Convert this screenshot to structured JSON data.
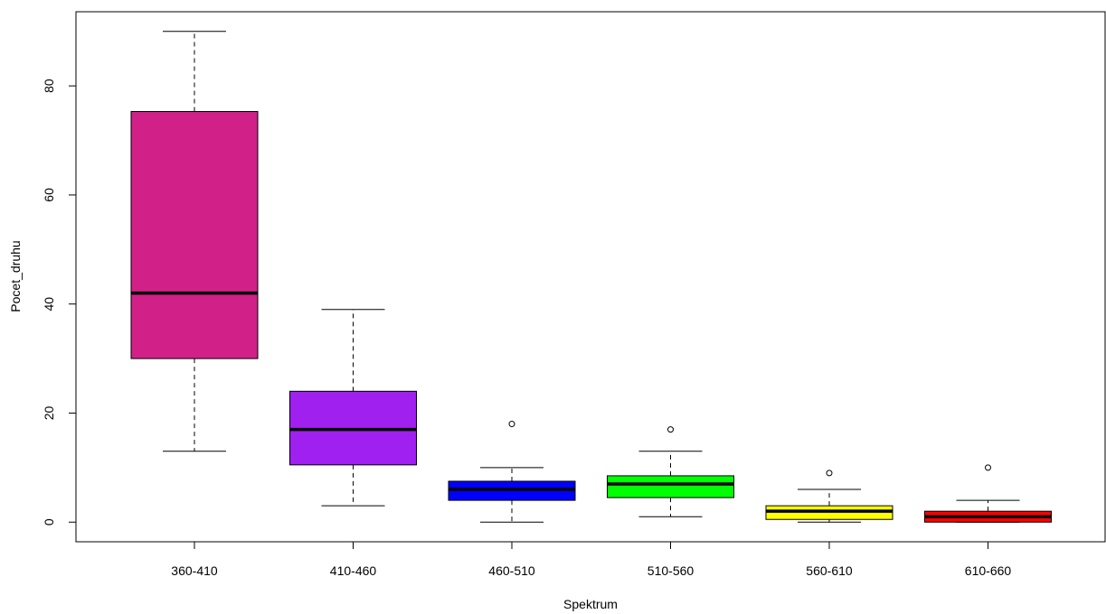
{
  "chart_data": {
    "type": "boxplot",
    "title": "",
    "xlabel": "Spektrum",
    "ylabel": "Pocet_druhu",
    "categories": [
      "360-410",
      "410-460",
      "460-510",
      "510-560",
      "560-610",
      "610-660"
    ],
    "colors": [
      "#d12189",
      "#a020f0",
      "#0000ff",
      "#00ff00",
      "#ffff00",
      "#ff0000"
    ],
    "boxes": [
      {
        "whisker_low": 13,
        "q1": 30,
        "median": 42,
        "q3": 75.3,
        "whisker_high": 90,
        "outliers": []
      },
      {
        "whisker_low": 3,
        "q1": 10.5,
        "median": 17,
        "q3": 24,
        "whisker_high": 39,
        "outliers": []
      },
      {
        "whisker_low": 0,
        "q1": 4,
        "median": 6,
        "q3": 7.5,
        "whisker_high": 10,
        "outliers": [
          18
        ]
      },
      {
        "whisker_low": 1,
        "q1": 4.5,
        "median": 7,
        "q3": 8.5,
        "whisker_high": 13,
        "outliers": [
          17
        ]
      },
      {
        "whisker_low": 0,
        "q1": 0.5,
        "median": 2,
        "q3": 3,
        "whisker_high": 6,
        "outliers": [
          9
        ]
      },
      {
        "whisker_low": 0,
        "q1": 0,
        "median": 1,
        "q3": 2,
        "whisker_high": 4,
        "outliers": [
          10
        ]
      }
    ],
    "yticks": [
      0,
      20,
      40,
      60,
      80
    ],
    "ylim": [
      -3.6,
      93.6
    ],
    "grid": false
  }
}
